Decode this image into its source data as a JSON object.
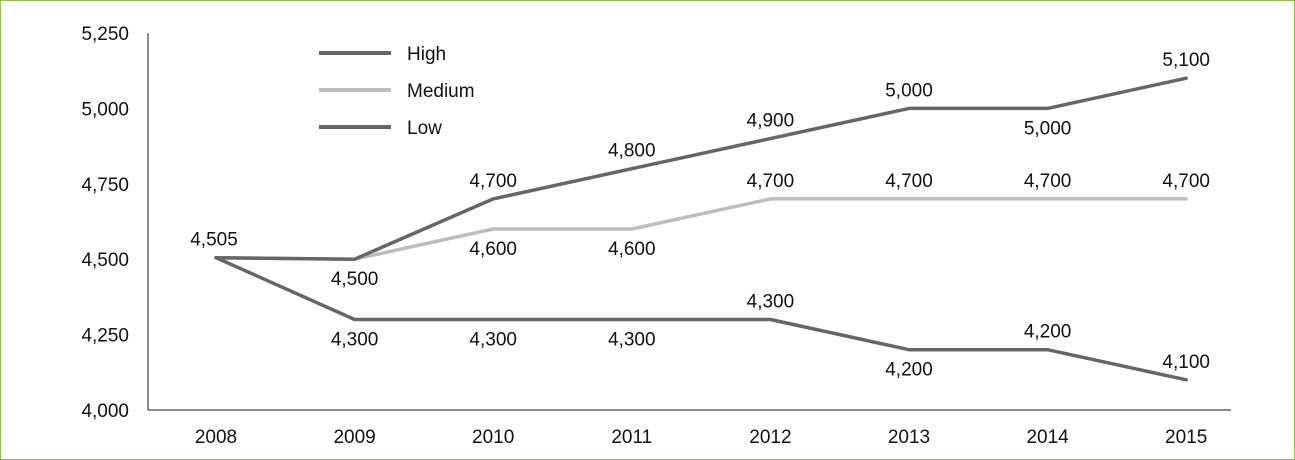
{
  "chart_data": {
    "type": "line",
    "title": "",
    "xlabel": "",
    "ylabel": "",
    "categories": [
      "2008",
      "2009",
      "2010",
      "2011",
      "2012",
      "2013",
      "2014",
      "2015"
    ],
    "ylim": [
      4000,
      5250
    ],
    "yticks": [
      4000,
      4250,
      4500,
      4750,
      5000,
      5250
    ],
    "ytick_labels": [
      "4,000",
      "4,250",
      "4,500",
      "4,750",
      "5,000",
      "5,250"
    ],
    "grid": false,
    "legend_position": "top-left",
    "series": [
      {
        "name": "High",
        "color": "#666666",
        "values": [
          4505,
          4500,
          4700,
          4800,
          4900,
          5000,
          5000,
          5100
        ],
        "labels": [
          "4,505",
          "",
          "4,700",
          "4,800",
          "4,900",
          "5,000",
          "5,000",
          "5,100"
        ],
        "label_side": [
          "above",
          "",
          "above",
          "above",
          "above",
          "above",
          "below",
          "above"
        ]
      },
      {
        "name": "Medium",
        "color": "#bdbdbd",
        "values": [
          4505,
          4500,
          4600,
          4600,
          4700,
          4700,
          4700,
          4700
        ],
        "labels": [
          "",
          "4,500",
          "4,600",
          "4,600",
          "4,700",
          "4,700",
          "4,700",
          "4,700"
        ],
        "label_side": [
          "",
          "below",
          "below",
          "below",
          "above",
          "above",
          "above",
          "above"
        ]
      },
      {
        "name": "Low",
        "color": "#666666",
        "values": [
          4505,
          4300,
          4300,
          4300,
          4300,
          4200,
          4200,
          4100
        ],
        "labels": [
          "",
          "4,300",
          "4,300",
          "4,300",
          "4,300",
          "4,200",
          "4,200",
          "4,100"
        ],
        "label_side": [
          "",
          "below",
          "below",
          "below",
          "above",
          "below",
          "above",
          "above"
        ]
      }
    ]
  }
}
